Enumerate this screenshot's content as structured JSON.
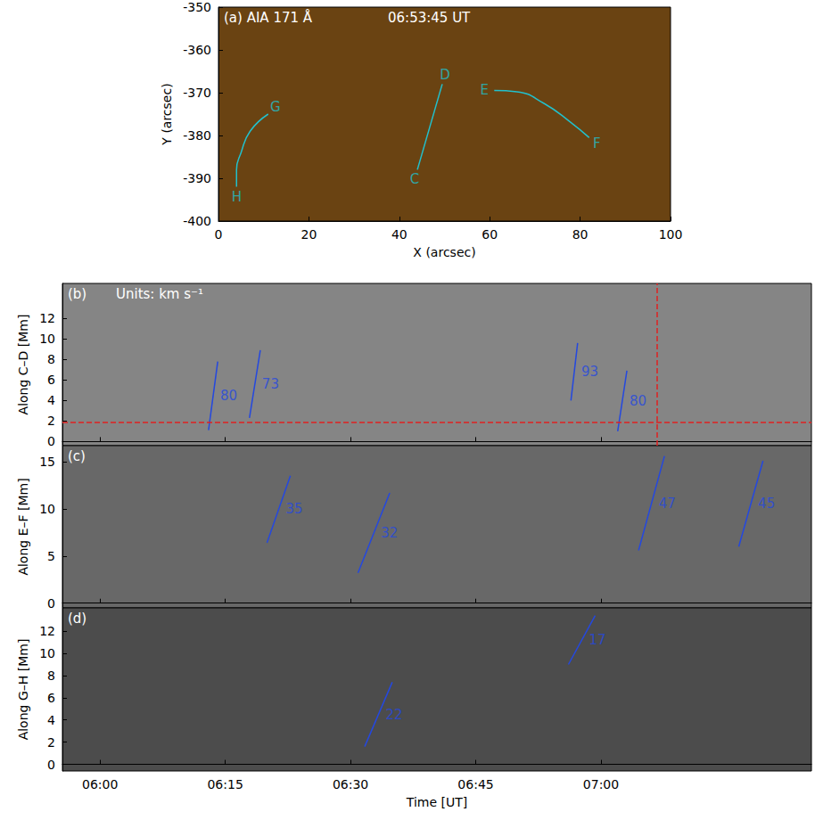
{
  "chart_data": [
    {
      "type": "image",
      "title": "(a) AIA 171 Å",
      "annotation": "06:53:45 UT",
      "x_label": "X (arcsec)",
      "y_label": "Y (arcsec)",
      "xlim": [
        0,
        100
      ],
      "xticks": [
        0,
        20,
        40,
        60,
        80,
        100
      ],
      "ylim": [
        -400,
        -350
      ],
      "yticks": [
        -400,
        -390,
        -380,
        -370,
        -360,
        -350
      ],
      "color": "#22c0cc",
      "paths": [
        {
          "labels": [
            "C",
            "D"
          ],
          "x": [
            44,
            49.5
          ],
          "y": [
            -388,
            -368
          ]
        },
        {
          "labels": [
            "E",
            "F"
          ],
          "x": [
            61,
            66,
            72,
            78,
            82
          ],
          "y": [
            -369.5,
            -369.8,
            -372.5,
            -377,
            -380.5
          ]
        },
        {
          "labels": [
            "G",
            "H"
          ],
          "x": [
            11,
            7,
            5,
            4,
            4
          ],
          "y": [
            -375,
            -379,
            -384,
            -388,
            -392
          ]
        }
      ]
    },
    {
      "type": "line",
      "title": "(b)",
      "annotation": "Units: km s⁻¹",
      "y_label": "Along C–D [Mm]",
      "tick_labels": "y",
      "xlim": [
        355.5,
        445.2
      ],
      "xticks": [
        {
          "value": 360,
          "label": "06:00"
        },
        {
          "value": 375,
          "label": "06:15"
        },
        {
          "value": 390,
          "label": "06:30"
        },
        {
          "value": 405,
          "label": "06:45"
        },
        {
          "value": 420,
          "label": "07:00"
        }
      ],
      "ylim": [
        -0.4,
        15.4
      ],
      "yticks": [
        0,
        2,
        4,
        6,
        8,
        10,
        12
      ],
      "color": "#2448e0",
      "speed_lines": [
        {
          "time": [
            373.0,
            374.1
          ],
          "distance": [
            1.1,
            7.8
          ],
          "speed": 80
        },
        {
          "time": [
            377.9,
            379.2
          ],
          "distance": [
            2.3,
            8.9
          ],
          "speed": 73
        },
        {
          "time": [
            416.4,
            417.2
          ],
          "distance": [
            4.0,
            9.6
          ],
          "speed": 93
        },
        {
          "time": [
            422.0,
            423.1
          ],
          "distance": [
            1.0,
            6.9
          ],
          "speed": 80
        }
      ],
      "reference_lines": {
        "x": 426.7,
        "y": 1.9,
        "color": "#e02020",
        "line_style": "dashed"
      }
    },
    {
      "type": "line",
      "title": "(c)",
      "y_label": "Along E–F [Mm]",
      "tick_labels": "y",
      "xlim": [
        355.5,
        445.2
      ],
      "xticks": [
        {
          "value": 360,
          "label": "06:00"
        },
        {
          "value": 375,
          "label": "06:15"
        },
        {
          "value": 390,
          "label": "06:30"
        },
        {
          "value": 405,
          "label": "06:45"
        },
        {
          "value": 420,
          "label": "07:00"
        }
      ],
      "ylim": [
        -0.5,
        16.7
      ],
      "yticks": [
        0,
        5,
        10,
        15
      ],
      "color": "#2448e0",
      "speed_lines": [
        {
          "time": [
            380.0,
            382.8
          ],
          "distance": [
            6.4,
            13.5
          ],
          "speed": 35
        },
        {
          "time": [
            390.9,
            394.7
          ],
          "distance": [
            3.2,
            11.7
          ],
          "speed": 32
        },
        {
          "time": [
            424.5,
            427.6
          ],
          "distance": [
            5.6,
            15.6
          ],
          "speed": 47
        },
        {
          "time": [
            436.5,
            439.4
          ],
          "distance": [
            6.0,
            15.1
          ],
          "speed": 45
        }
      ]
    },
    {
      "type": "line",
      "title": "(d)",
      "x_label": "Time [UT]",
      "y_label": "Along G–H [Mm]",
      "tick_labels": true,
      "xlim": [
        355.5,
        445.2
      ],
      "xticks": [
        {
          "value": 360,
          "label": "06:00"
        },
        {
          "value": 375,
          "label": "06:15"
        },
        {
          "value": 390,
          "label": "06:30"
        },
        {
          "value": 405,
          "label": "06:45"
        },
        {
          "value": 420,
          "label": "07:00"
        }
      ],
      "ylim": [
        -0.6,
        14.1
      ],
      "yticks": [
        0,
        2,
        4,
        6,
        8,
        10,
        12
      ],
      "color": "#2448e0",
      "speed_lines": [
        {
          "time": [
            391.7,
            395.0
          ],
          "distance": [
            1.6,
            7.4
          ],
          "speed": 22
        },
        {
          "time": [
            416.1,
            419.3
          ],
          "distance": [
            9.0,
            13.4
          ],
          "speed": 17
        }
      ]
    }
  ]
}
